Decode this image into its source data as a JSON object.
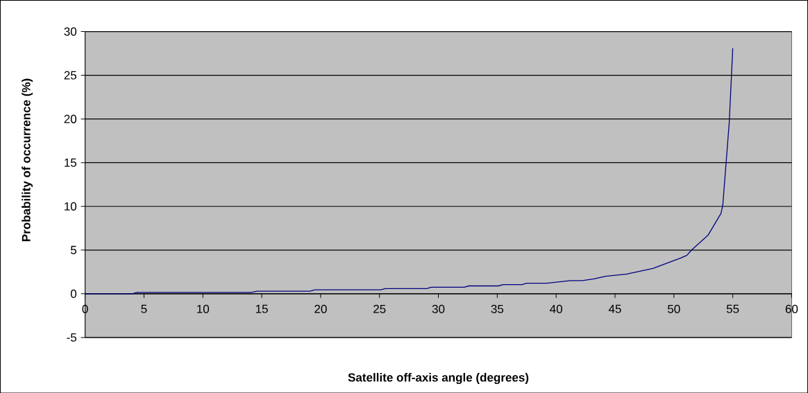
{
  "chart_data": {
    "type": "line",
    "xlabel": "Satellite off-axis angle (degrees)",
    "ylabel": "Probability of occurrence (%)",
    "x": [
      0,
      4.0,
      4.4,
      14.1,
      14.6,
      19.1,
      19.5,
      25.1,
      25.5,
      29.0,
      29.4,
      32.2,
      32.6,
      35.1,
      35.5,
      37.1,
      37.5,
      39.2,
      41.2,
      42.2,
      43.2,
      44.2,
      46.0,
      48.2,
      50.6,
      51.1,
      51.5,
      52.9,
      54.0,
      54.15,
      54.7,
      55.0
    ],
    "values": [
      0,
      0,
      0.15,
      0.15,
      0.3,
      0.3,
      0.45,
      0.45,
      0.6,
      0.6,
      0.75,
      0.75,
      0.9,
      0.9,
      1.05,
      1.05,
      1.2,
      1.2,
      1.5,
      1.5,
      1.7,
      2.0,
      2.25,
      2.9,
      4.1,
      4.4,
      5.0,
      6.7,
      9.2,
      10.1,
      19.6,
      28.1
    ],
    "color": "#000080",
    "xlim": [
      0,
      60
    ],
    "ylim": [
      -5,
      30
    ],
    "xticks": [
      0,
      5,
      10,
      15,
      20,
      25,
      30,
      35,
      40,
      45,
      50,
      55,
      60
    ],
    "yticks": [
      -5,
      0,
      5,
      10,
      15,
      20,
      25,
      30
    ],
    "grid": "y"
  }
}
